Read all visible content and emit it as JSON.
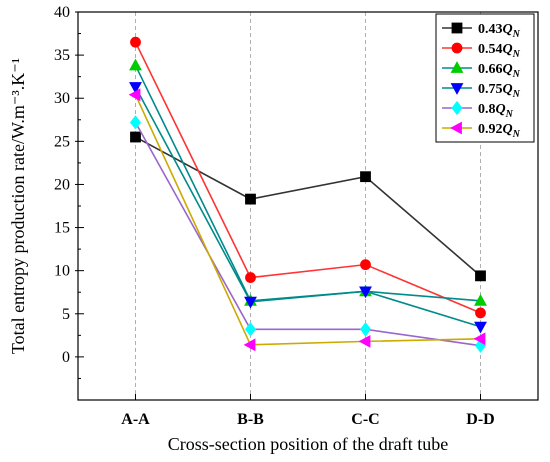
{
  "chart_data": {
    "type": "line",
    "title": "",
    "xlabel": "Cross-section position of the draft tube",
    "ylabel": "Total entropy production rate/W.m⁻³.K⁻¹",
    "categories": [
      "A-A",
      "B-B",
      "C-C",
      "D-D"
    ],
    "ylim": [
      -5,
      40
    ],
    "yticks": [
      0,
      5,
      10,
      15,
      20,
      25,
      30,
      35,
      40
    ],
    "grid": "vertical dashed",
    "legend_placement": "top-right",
    "series": [
      {
        "name": "0.43Q_N",
        "legend_base": "0.43",
        "legend_sub": "N",
        "color": "#000000",
        "marker": "square",
        "values": [
          25.5,
          18.3,
          20.9,
          9.4
        ]
      },
      {
        "name": "0.54Q_N",
        "legend_base": "0.54",
        "legend_sub": "N",
        "color": "#ff0000",
        "marker": "circle",
        "values": [
          36.5,
          9.2,
          10.7,
          5.1
        ]
      },
      {
        "name": "0.66Q_N",
        "legend_base": "0.66",
        "legend_sub": "N",
        "color": "#00cc00",
        "marker": "triangle-up",
        "values": [
          33.8,
          6.5,
          7.6,
          6.5
        ]
      },
      {
        "name": "0.75Q_N",
        "legend_base": "0.75",
        "legend_sub": "N",
        "color": "#0000ff",
        "marker": "triangle-down",
        "values": [
          31.3,
          6.4,
          7.6,
          3.5
        ]
      },
      {
        "name": "0.8Q_N",
        "legend_base": "0.8",
        "legend_sub": "N",
        "color": "#00ffff",
        "marker": "diamond",
        "values": [
          27.2,
          3.2,
          3.2,
          1.3
        ]
      },
      {
        "name": "0.92Q_N",
        "legend_base": "0.92",
        "legend_sub": "N",
        "color": "#ff00ff",
        "marker": "triangle-left",
        "values": [
          30.4,
          1.4,
          1.8,
          2.1
        ]
      }
    ],
    "line_colors": [
      "#333333",
      "#ff3333",
      "#008b8b",
      "#008b8b",
      "#9966cc",
      "#ccaa00"
    ]
  }
}
